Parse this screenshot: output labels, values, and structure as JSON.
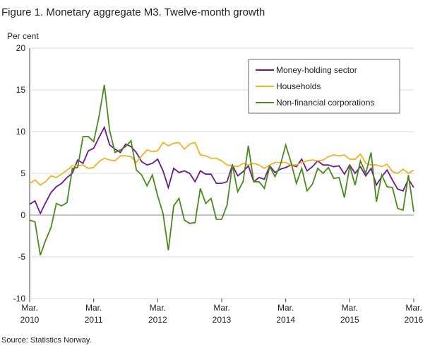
{
  "chart_data": {
    "type": "line",
    "title": "Figure 1. Monetary aggregate M3. Twelve-month growth",
    "y_label": "Per cent",
    "source": "Source: Statistics Norway.",
    "categories": [
      "Mar.\n2010",
      null,
      null,
      null,
      null,
      null,
      null,
      null,
      null,
      null,
      null,
      null,
      "Mar.\n2011",
      null,
      null,
      null,
      null,
      null,
      null,
      null,
      null,
      null,
      null,
      null,
      "Mar.\n2012",
      null,
      null,
      null,
      null,
      null,
      null,
      null,
      null,
      null,
      null,
      null,
      "Mar.\n2013",
      null,
      null,
      null,
      null,
      null,
      null,
      null,
      null,
      null,
      null,
      null,
      "Mar.\n2014",
      null,
      null,
      null,
      null,
      null,
      null,
      null,
      null,
      null,
      null,
      null,
      "Mar.\n2015",
      null,
      null,
      null,
      null,
      null,
      null,
      null,
      null,
      null,
      null,
      null,
      "Mar.\n2016"
    ],
    "series": [
      {
        "name": "Money-holding sector",
        "color": "#6a1b8a",
        "values": [
          1.3,
          1.7,
          0.2,
          1.5,
          2.7,
          3.4,
          3.8,
          4.5,
          5.0,
          6.6,
          6.2,
          7.7,
          8.0,
          9.3,
          10.5,
          8.4,
          7.9,
          7.5,
          8.5,
          8.2,
          7.5,
          6.4,
          6.0,
          6.2,
          6.7,
          5.3,
          3.3,
          5.6,
          5.1,
          5.3,
          5.0,
          4.0,
          5.3,
          4.9,
          4.9,
          3.8,
          3.8,
          4.0,
          6.0,
          4.7,
          5.2,
          5.9,
          4.0,
          4.5,
          4.3,
          5.9,
          5.1,
          5.5,
          5.7,
          6.0,
          5.8,
          6.7,
          5.3,
          5.8,
          6.5,
          6.0,
          6.0,
          5.8,
          5.9,
          4.9,
          6.0,
          5.0,
          5.8,
          4.7,
          5.6,
          3.6,
          4.6,
          5.4,
          4.2,
          3.1,
          2.9,
          4.3,
          3.3
        ]
      },
      {
        "name": "Households",
        "color": "#f0b323",
        "values": [
          3.8,
          4.2,
          3.6,
          4.0,
          4.7,
          4.5,
          4.9,
          5.4,
          5.9,
          5.9,
          6.0,
          5.6,
          5.7,
          6.4,
          6.8,
          6.6,
          6.5,
          7.1,
          7.1,
          7.0,
          6.3,
          7.1,
          7.8,
          7.6,
          7.7,
          8.7,
          8.3,
          8.6,
          8.7,
          7.9,
          8.5,
          8.7,
          7.2,
          7.1,
          6.8,
          6.8,
          6.5,
          6.0,
          5.9,
          5.8,
          6.2,
          6.0,
          6.2,
          6.0,
          5.6,
          6.0,
          6.3,
          6.3,
          6.3,
          6.0,
          6.0,
          6.3,
          6.5,
          6.6,
          6.5,
          6.6,
          7.0,
          7.2,
          7.1,
          7.2,
          6.7,
          6.7,
          7.3,
          6.2,
          6.0,
          6.0,
          5.8,
          6.1,
          5.2,
          5.0,
          5.5,
          5.0,
          5.4
        ]
      },
      {
        "name": "Non-financial corporations",
        "color": "#4a8a1c",
        "values": [
          -0.6,
          -0.8,
          -4.8,
          -3.0,
          -1.5,
          1.4,
          1.1,
          1.5,
          5.6,
          5.7,
          9.4,
          9.4,
          8.8,
          11.8,
          15.6,
          10.1,
          7.5,
          7.8,
          8.2,
          8.9,
          5.4,
          4.8,
          3.5,
          4.8,
          2.3,
          0.2,
          -4.2,
          1.1,
          2.0,
          -0.6,
          -1.0,
          -0.9,
          3.2,
          1.4,
          2.0,
          -0.5,
          -0.5,
          1.2,
          6.0,
          2.8,
          4.0,
          8.3,
          4.0,
          4.0,
          3.2,
          5.8,
          4.6,
          6.0,
          8.4,
          6.3,
          3.8,
          5.6,
          2.9,
          3.7,
          5.6,
          5.0,
          5.7,
          4.4,
          4.5,
          2.1,
          5.9,
          3.6,
          6.5,
          5.0,
          7.5,
          1.6,
          4.8,
          3.4,
          3.3,
          0.8,
          0.6,
          4.8,
          0.4
        ]
      }
    ],
    "ylim": [
      -10,
      20
    ],
    "yticks": [
      -10,
      -5,
      0,
      5,
      10,
      15,
      20
    ],
    "grid": true
  }
}
